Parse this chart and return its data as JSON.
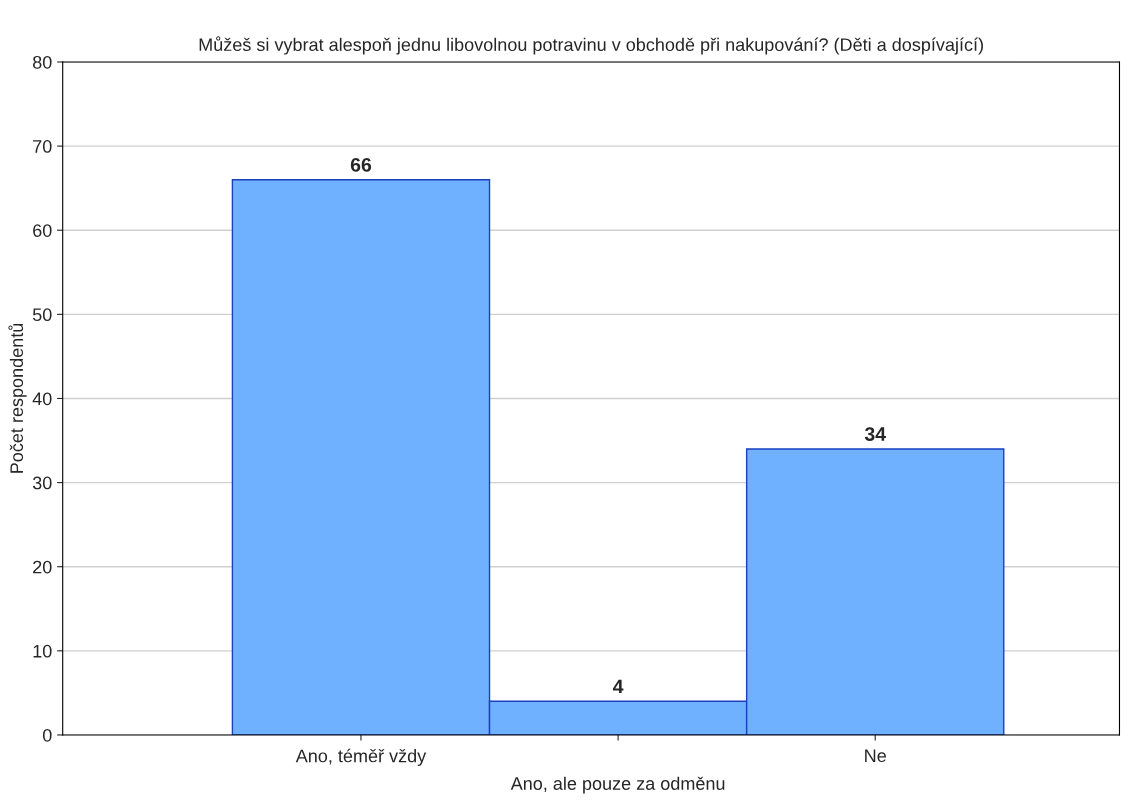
{
  "chart_data": {
    "type": "bar",
    "title": "Můžeš si vybrat alespoň jednu libovolnou potravinu v obchodě při nakupování? (Děti a dospívající)",
    "ylabel": "Počet respondentů",
    "categories": [
      "Ano, téměř vždy",
      "Ano, ale pouze za odměnu",
      "Ne"
    ],
    "values": [
      66,
      4,
      34
    ],
    "color": "#6fb0ff",
    "ylim": [
      0,
      80
    ],
    "yticks": [
      0,
      10,
      20,
      30,
      40,
      50,
      60,
      70,
      80
    ],
    "grid": "y",
    "data_labels": true
  }
}
